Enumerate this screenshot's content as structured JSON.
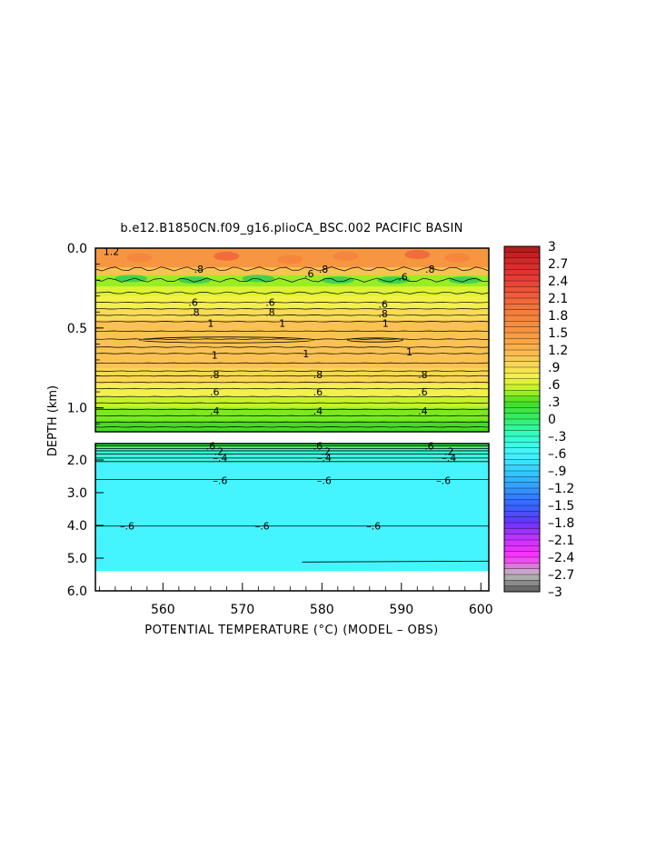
{
  "chart_data": {
    "type": "heatmap",
    "title": "b.e12.B1850CN.f09_g16.plioCA_BSC.002  PACIFIC BASIN",
    "xlabel": "POTENTIAL TEMPERATURE (°C)  (MODEL – OBS)",
    "ylabel": "DEPTH (km)",
    "x_ticks": [
      "560",
      "570",
      "580",
      "590",
      "600"
    ],
    "x_range": [
      551.5,
      601
    ],
    "upper_panel": {
      "y_range": [
        0.0,
        1.15
      ],
      "y_ticks": [
        "0.0",
        "0.5",
        "1.0"
      ],
      "y_tick_values": [
        0.0,
        0.5,
        1.0
      ]
    },
    "lower_panel": {
      "y_range": [
        1.5,
        6.0
      ],
      "y_ticks": [
        "2.0",
        "3.0",
        "4.0",
        "5.0",
        "6.0"
      ],
      "y_tick_values": [
        2.0,
        3.0,
        4.0,
        5.0,
        6.0
      ],
      "data_bottom_km": 5.38
    },
    "colorbar": {
      "tick_labels": [
        "3",
        "2.7",
        "2.4",
        "2.1",
        "1.8",
        "1.5",
        "1.2",
        ".9",
        ".6",
        ".3",
        "0",
        "–.3",
        "–.6",
        "–.9",
        "–1.2",
        "–1.5",
        "–1.8",
        "–2.1",
        "–2.4",
        "–2.7",
        "–3"
      ],
      "tick_values": [
        3,
        2.7,
        2.4,
        2.1,
        1.8,
        1.5,
        1.2,
        0.9,
        0.6,
        0.3,
        0,
        -0.3,
        -0.6,
        -0.9,
        -1.2,
        -1.5,
        -1.8,
        -2.1,
        -2.4,
        -2.7,
        -3
      ],
      "range": [
        -3,
        3
      ]
    },
    "upper_bands": [
      {
        "z0": 0.0,
        "z1": 0.12,
        "value": 1.5
      },
      {
        "z0": 0.12,
        "z1": 0.17,
        "value": 1.1
      },
      {
        "z0": 0.17,
        "z1": 0.24,
        "value": 0.45
      },
      {
        "z0": 0.24,
        "z1": 0.3,
        "value": 0.6
      },
      {
        "z0": 0.3,
        "z1": 0.38,
        "value": 0.75
      },
      {
        "z0": 0.38,
        "z1": 0.45,
        "value": 0.9
      },
      {
        "z0": 0.45,
        "z1": 0.75,
        "value": 1.1
      },
      {
        "z0": 0.75,
        "z1": 0.85,
        "value": 0.95
      },
      {
        "z0": 0.85,
        "z1": 0.93,
        "value": 0.75
      },
      {
        "z0": 0.93,
        "z1": 1.0,
        "value": 0.55
      },
      {
        "z0": 1.0,
        "z1": 1.08,
        "value": 0.4
      },
      {
        "z0": 1.08,
        "z1": 1.15,
        "value": 0.3
      }
    ],
    "lower_bands": [
      {
        "z0": 1.5,
        "z1": 1.62,
        "value": 0.1
      },
      {
        "z0": 1.62,
        "z1": 1.8,
        "value": -0.3
      },
      {
        "z0": 1.8,
        "z1": 2.05,
        "value": -0.45
      },
      {
        "z0": 2.05,
        "z1": 5.38,
        "value": -0.6
      }
    ],
    "contour_levels_upper": [
      0.13,
      0.2,
      0.28,
      0.34,
      0.38,
      0.42,
      0.46,
      0.52,
      0.57,
      0.62,
      0.66,
      0.72,
      0.77,
      0.8,
      0.84,
      0.88,
      0.93,
      0.97,
      1.01,
      1.05,
      1.09,
      1.12
    ],
    "contour_levels_lower": [
      1.57,
      1.65,
      1.72,
      1.82,
      1.94,
      2.05,
      2.6,
      4.02,
      5.12
    ],
    "contour_labels": [
      {
        "text": "1.2",
        "x": 553.5,
        "z": 0.02
      },
      {
        "text": ".8",
        "x": 564.5,
        "z": 0.13
      },
      {
        "text": ".8",
        "x": 580.2,
        "z": 0.13
      },
      {
        "text": ".6",
        "x": 578.4,
        "z": 0.16
      },
      {
        "text": ".8",
        "x": 593.6,
        "z": 0.13
      },
      {
        "text": ".6",
        "x": 590.2,
        "z": 0.18
      },
      {
        "text": ".6",
        "x": 563.8,
        "z": 0.34
      },
      {
        "text": ".6",
        "x": 573.5,
        "z": 0.34
      },
      {
        "text": ".6",
        "x": 587.7,
        "z": 0.35
      },
      {
        "text": ".8",
        "x": 564.0,
        "z": 0.4
      },
      {
        "text": ".8",
        "x": 573.5,
        "z": 0.4
      },
      {
        "text": ".8",
        "x": 587.7,
        "z": 0.41
      },
      {
        "text": "1",
        "x": 566.0,
        "z": 0.47
      },
      {
        "text": "1",
        "x": 575.0,
        "z": 0.47
      },
      {
        "text": "1",
        "x": 588.0,
        "z": 0.47
      },
      {
        "text": "1",
        "x": 566.5,
        "z": 0.67
      },
      {
        "text": "1",
        "x": 578.0,
        "z": 0.66
      },
      {
        "text": "1",
        "x": 591.0,
        "z": 0.65
      },
      {
        "text": ".8",
        "x": 566.5,
        "z": 0.79
      },
      {
        "text": ".8",
        "x": 579.5,
        "z": 0.79
      },
      {
        "text": ".8",
        "x": 592.7,
        "z": 0.79
      },
      {
        "text": ".6",
        "x": 566.5,
        "z": 0.9
      },
      {
        "text": ".6",
        "x": 579.5,
        "z": 0.9
      },
      {
        "text": ".6",
        "x": 592.7,
        "z": 0.9
      },
      {
        "text": ".4",
        "x": 566.5,
        "z": 1.02
      },
      {
        "text": ".4",
        "x": 579.5,
        "z": 1.02
      },
      {
        "text": ".4",
        "x": 592.7,
        "z": 1.02
      },
      {
        "text": ".6",
        "x": 566.0,
        "z": 1.57
      },
      {
        "text": ".6",
        "x": 579.5,
        "z": 1.57
      },
      {
        "text": ".6",
        "x": 593.5,
        "z": 1.57
      },
      {
        "text": ".2",
        "x": 567.0,
        "z": 1.74
      },
      {
        "text": ".2",
        "x": 580.5,
        "z": 1.74
      },
      {
        "text": ".2",
        "x": 596.0,
        "z": 1.74
      },
      {
        "text": "–.4",
        "x": 567.2,
        "z": 1.93
      },
      {
        "text": "–.4",
        "x": 580.3,
        "z": 1.93
      },
      {
        "text": "–.4",
        "x": 596.0,
        "z": 1.93
      },
      {
        "text": "–.6",
        "x": 567.2,
        "z": 2.62
      },
      {
        "text": "–.6",
        "x": 580.3,
        "z": 2.62
      },
      {
        "text": "–.6",
        "x": 595.3,
        "z": 2.62
      },
      {
        "text": "–.6",
        "x": 555.5,
        "z": 4.02
      },
      {
        "text": "–.6",
        "x": 572.5,
        "z": 4.02
      },
      {
        "text": "–.6",
        "x": 586.5,
        "z": 4.02
      }
    ]
  }
}
